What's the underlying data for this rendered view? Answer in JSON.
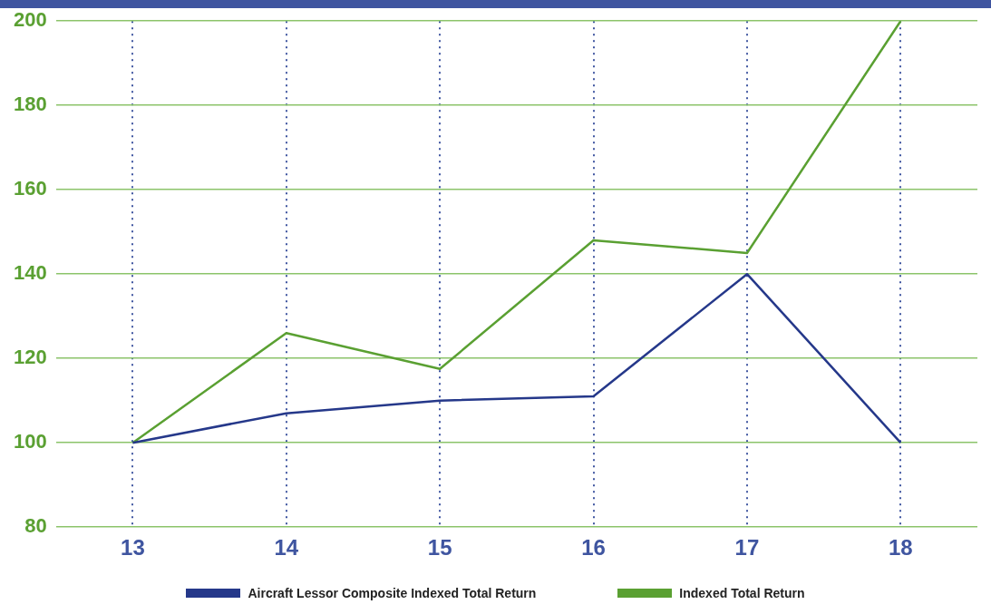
{
  "chart_data": {
    "type": "line",
    "categories": [
      "13",
      "14",
      "15",
      "16",
      "17",
      "18"
    ],
    "series": [
      {
        "name": "Aircraft Lessor Composite Indexed Total Return",
        "color": "#25388a",
        "values": [
          100,
          107,
          110,
          111,
          140,
          100
        ]
      },
      {
        "name": "Indexed Total Return",
        "color": "#5aa032",
        "values": [
          100,
          126,
          117.5,
          148,
          145,
          200
        ]
      }
    ],
    "ylim": [
      80,
      200
    ],
    "yticks": [
      80,
      100,
      120,
      140,
      160,
      180,
      200
    ],
    "grid": true,
    "legend": "bottom",
    "marker": "none",
    "line_style": "solid"
  }
}
